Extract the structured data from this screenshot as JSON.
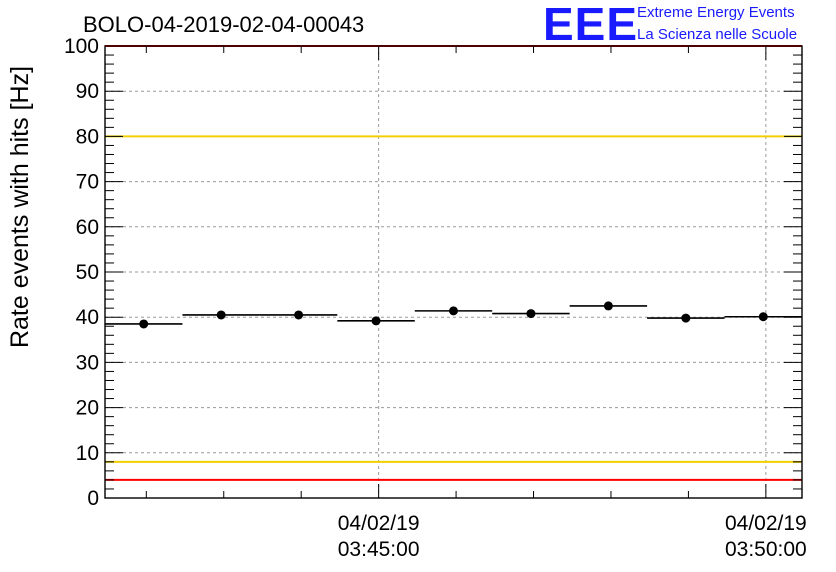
{
  "header": {
    "run_id": "BOLO-04-2019-02-04-00043",
    "logo_text": "EEE",
    "logo_line1": "Extreme Energy Events",
    "logo_line2": "La Scienza nelle Scuole"
  },
  "chart_data": {
    "type": "scatter",
    "ylabel": "Rate events with hits [Hz]",
    "xlabel": "",
    "ylim": [
      0,
      100
    ],
    "xlim": [
      "03:41:28",
      "03:50:28"
    ],
    "yticks": [
      0,
      10,
      20,
      30,
      40,
      50,
      60,
      70,
      80,
      90,
      100
    ],
    "xticks": [
      {
        "time": "03:45:00",
        "date": "04/02/19",
        "clock": "03:45:00"
      },
      {
        "time": "03:50:00",
        "date": "04/02/19",
        "clock": "03:50:00"
      }
    ],
    "grid": true,
    "series": [
      {
        "x_start": [
          "03:41:28",
          "03:42:28",
          "03:43:28",
          "03:44:28",
          "03:45:28",
          "03:46:28",
          "03:47:28",
          "03:48:28",
          "03:49:28"
        ],
        "x_end": [
          "03:42:28",
          "03:43:28",
          "03:44:28",
          "03:45:28",
          "03:46:28",
          "03:47:28",
          "03:48:28",
          "03:49:28",
          "03:50:28"
        ],
        "values": [
          38.5,
          40.5,
          40.5,
          39.2,
          41.4,
          40.8,
          42.5,
          39.8,
          40.1
        ]
      }
    ],
    "reference_lines": [
      {
        "y": 100,
        "color": "#ff0000"
      },
      {
        "y": 80,
        "color": "#f0d000"
      },
      {
        "y": 8,
        "color": "#f0d000"
      },
      {
        "y": 4,
        "color": "#ff0000"
      }
    ]
  }
}
